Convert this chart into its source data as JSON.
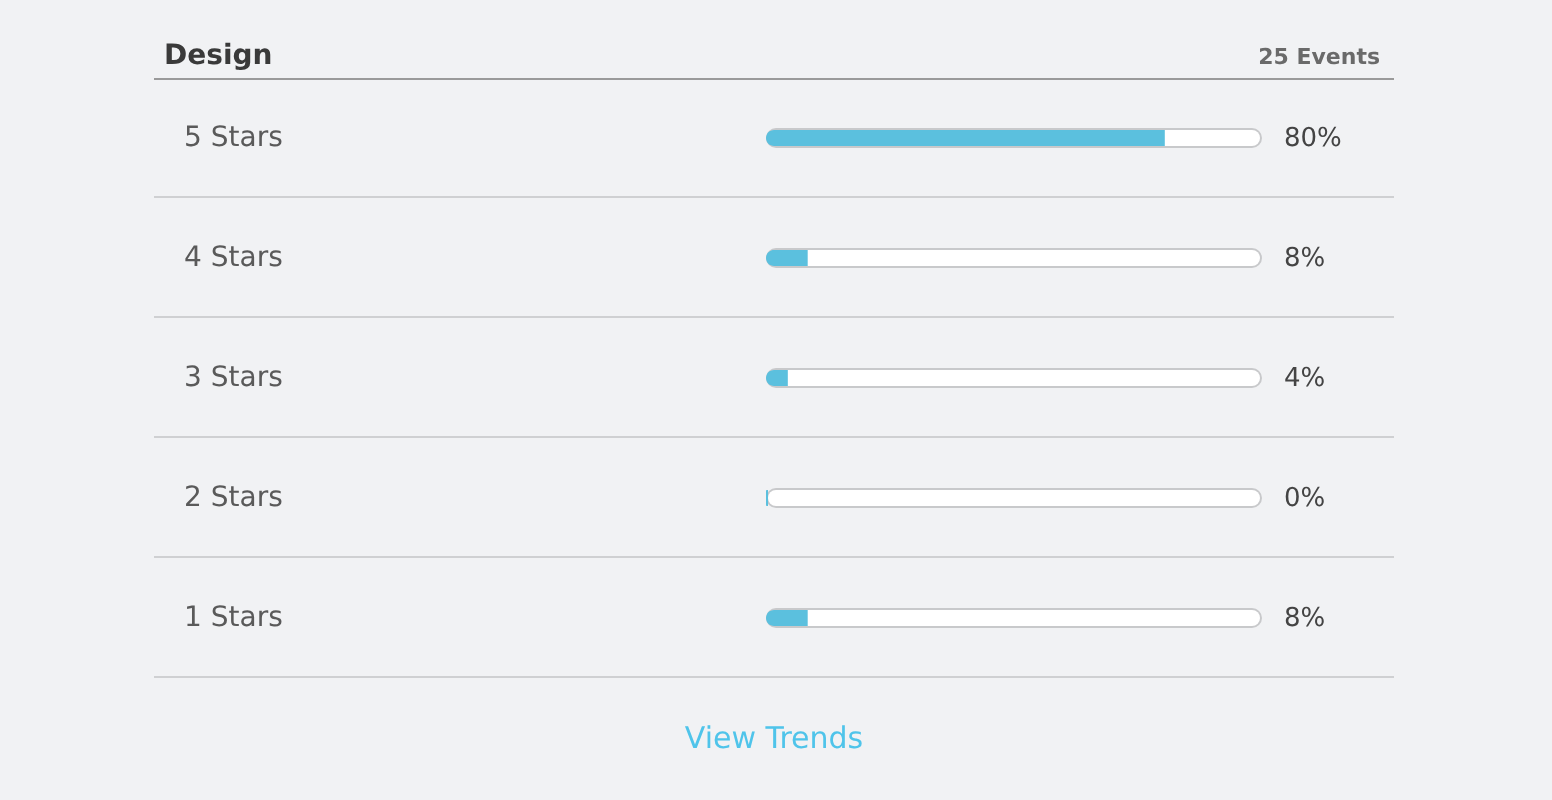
{
  "chart_data": {
    "type": "bar",
    "orientation": "horizontal",
    "title": "Design",
    "annotations": [
      "25 Events",
      "View Trends"
    ],
    "categories": [
      "5 Stars",
      "4 Stars",
      "3 Stars",
      "2 Stars",
      "1 Stars"
    ],
    "values": [
      80,
      8,
      4,
      0,
      8
    ],
    "value_labels": [
      "80%",
      "8%",
      "4%",
      "0%",
      "8%"
    ],
    "color": "#5bc0de",
    "tick_labels": "y",
    "grid": "y"
  }
}
